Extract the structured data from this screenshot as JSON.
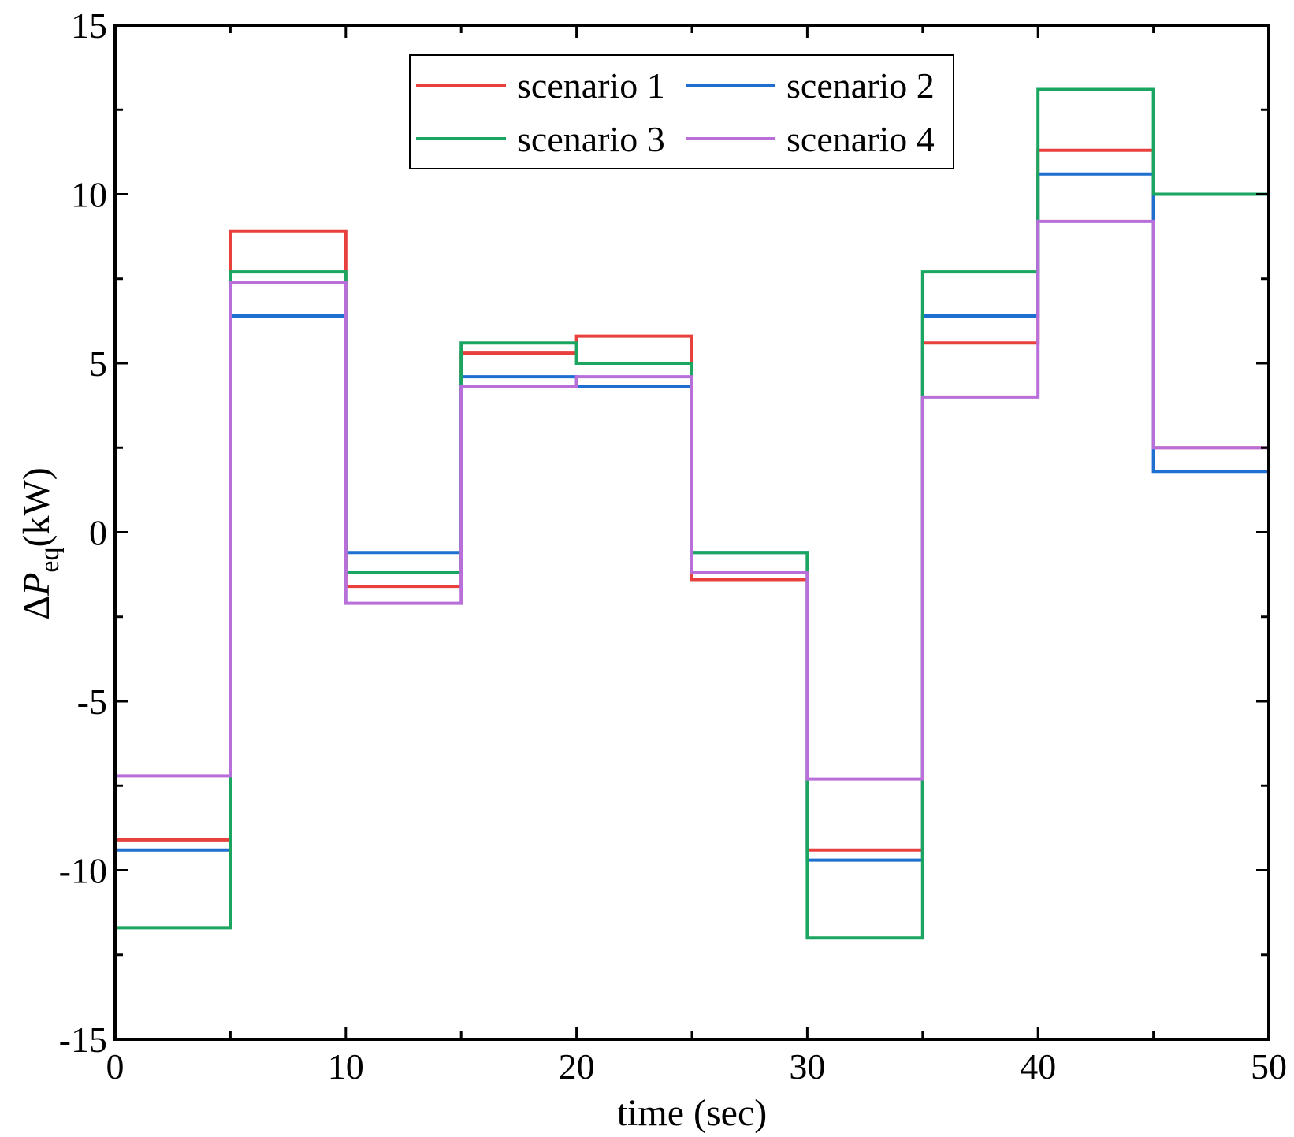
{
  "chart_data": {
    "type": "line",
    "step": "post",
    "title": "",
    "xlabel": "time (sec)",
    "ylabel": {
      "delta": "Δ",
      "symbol": "P",
      "subscript": "eq",
      "unit": "(kW)"
    },
    "xlim": [
      0,
      50
    ],
    "ylim": [
      -15,
      15
    ],
    "xticks": [
      0,
      10,
      20,
      30,
      40,
      50
    ],
    "xtick_labels": [
      "0",
      "10",
      "20",
      "30",
      "40",
      "50"
    ],
    "yticks": [
      -15,
      -10,
      -5,
      0,
      5,
      10,
      15
    ],
    "ytick_labels": [
      "-15",
      "-10",
      "-5",
      "0",
      "5",
      "10",
      "15"
    ],
    "grid": false,
    "legend_position": "top-center",
    "x": [
      0,
      5,
      10,
      15,
      20,
      25,
      30,
      35,
      40,
      45,
      50
    ],
    "series": [
      {
        "name": "scenario 1",
        "color": "#e8403c",
        "values": [
          -9.1,
          8.9,
          -1.6,
          5.3,
          5.8,
          -1.4,
          -9.4,
          5.6,
          11.3,
          2.5,
          2.5
        ]
      },
      {
        "name": "scenario 2",
        "color": "#1f6fd1",
        "values": [
          -9.4,
          6.4,
          -0.6,
          4.6,
          4.3,
          -0.6,
          -9.7,
          6.4,
          10.6,
          1.8,
          1.8
        ]
      },
      {
        "name": "scenario 3",
        "color": "#1aa661",
        "values": [
          -11.7,
          7.7,
          -1.2,
          5.6,
          5.0,
          -0.6,
          -12.0,
          7.7,
          13.1,
          10.0,
          10.0
        ]
      },
      {
        "name": "scenario 4",
        "color": "#b96fd9",
        "values": [
          -7.2,
          7.4,
          -2.1,
          4.3,
          4.6,
          -1.2,
          -7.3,
          4.0,
          9.2,
          2.5,
          2.5
        ]
      }
    ]
  }
}
